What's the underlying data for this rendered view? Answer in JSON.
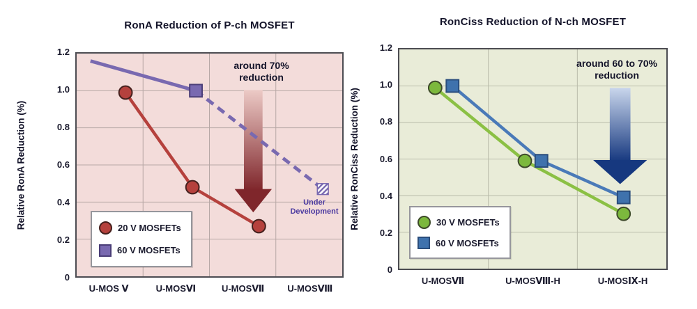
{
  "chart_data": [
    {
      "type": "line",
      "title": "RonA Reduction of P-ch MOSFET",
      "ylabel": "Relative RonA Reduction (%)",
      "xlabel": "",
      "ylim": [
        0,
        1.2
      ],
      "ytick_labels": [
        "1.2",
        "1.0",
        "0.8",
        "0.6",
        "0.4",
        "0.2",
        "0"
      ],
      "categories": [
        "U-MOS Ⅴ",
        "U-MOSⅥ",
        "U-MOSⅦ",
        "U-MOSⅧ"
      ],
      "background": "#f3dcda",
      "grid_color": "#b7a7a5",
      "legend_position": "lower-left",
      "series": [
        {
          "name": "20 V MOSFETs",
          "color": "#b5413d",
          "marker": "circle",
          "marker_fill": "#b5413d",
          "marker_stroke": "#45201d",
          "line_width": 4.5,
          "points": [
            {
              "category": "U-MOS Ⅴ",
              "value": 0.99,
              "x_frac": 0.184
            },
            {
              "category": "U-MOSⅥ",
              "value": 0.48,
              "x_frac": 0.436
            },
            {
              "category": "U-MOSⅦ",
              "value": 0.27,
              "x_frac": 0.686
            }
          ]
        },
        {
          "name": "60 V MOSFETs",
          "color": "#7969b0",
          "marker": "square",
          "marker_fill": "#7969b0",
          "marker_stroke": "#4a3d77",
          "line_width": 5,
          "points": [
            {
              "value": 1.16,
              "x_frac": 0.052,
              "marker": "none"
            },
            {
              "category": "U-MOSⅥ",
              "value": 1.0,
              "x_frac": 0.449
            },
            {
              "category": "U-MOSⅧ",
              "value": 0.47,
              "x_frac": 0.927,
              "marker": "hatched-square",
              "segment": "dashed",
              "status": "Under Development"
            }
          ]
        }
      ],
      "annotation": {
        "line1": "around 70%",
        "line2": "reduction",
        "arrow_dark": "#7f262b",
        "arrow_light": "#eccac6"
      },
      "note": {
        "line1": "Under",
        "line2": "Development",
        "color": "#4b3aa0"
      }
    },
    {
      "type": "line",
      "title": "RonCiss Reduction of N-ch MOSFET",
      "ylabel": "Relative RonCiss Reduction (%)",
      "xlabel": "",
      "ylim": [
        0,
        1.2
      ],
      "ytick_labels": [
        "1.2",
        "1.0",
        "0.8",
        "0.6",
        "0.4",
        "0.2",
        "0"
      ],
      "categories": [
        "U-MOSⅦ",
        "U-MOSⅧ-H",
        "U-MOSⅨ-H"
      ],
      "background": "#e9ecd8",
      "grid_color": "#b9bcaa",
      "legend_position": "lower-left",
      "series": [
        {
          "name": "30 V MOSFETs",
          "color": "#8bc044",
          "marker": "circle",
          "marker_fill": "#7cb83d",
          "marker_stroke": "#3d4a2a",
          "line_width": 4.5,
          "points": [
            {
              "category": "U-MOSⅦ",
              "value": 0.99,
              "x_frac": 0.134
            },
            {
              "category": "U-MOSⅧ-H",
              "value": 0.59,
              "x_frac": 0.47
            },
            {
              "category": "U-MOSⅨ-H",
              "value": 0.3,
              "x_frac": 0.84
            }
          ]
        },
        {
          "name": "60 V MOSFETs",
          "color": "#4a7ab8",
          "marker": "square",
          "marker_fill": "#3f72ad",
          "marker_stroke": "#2a4d7c",
          "line_width": 4.5,
          "points": [
            {
              "category": "U-MOSⅦ",
              "value": 1.0,
              "x_frac": 0.199
            },
            {
              "category": "U-MOSⅧ-H",
              "value": 0.59,
              "x_frac": 0.532
            },
            {
              "category": "U-MOSⅨ-H",
              "value": 0.39,
              "x_frac": 0.84
            }
          ]
        }
      ],
      "annotation": {
        "line1": "around 60 to 70%",
        "line2": "reduction",
        "arrow_dark": "#16387f",
        "arrow_light": "#c9d6ec"
      }
    }
  ]
}
